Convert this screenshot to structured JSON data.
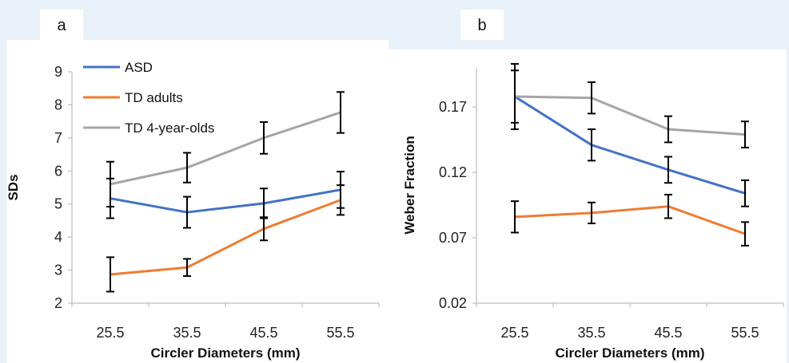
{
  "figure": {
    "background": "#e8f1fa",
    "panel_background": "#ffffff",
    "colors": {
      "ASD": "#4472c4",
      "TD adults": "#ed7d31",
      "TD 4-year-olds": "#a5a5a5",
      "error_bar": "#000000"
    }
  },
  "chart_data": [
    {
      "panel_label": "a",
      "type": "line",
      "xlabel": "Circler Diameters (mm)",
      "ylabel": "SDs",
      "categories": [
        "25.5",
        "35.5",
        "45.5",
        "55.5"
      ],
      "ylim": [
        2,
        9
      ],
      "yticks": [
        "2",
        "3",
        "4",
        "5",
        "6",
        "7",
        "8",
        "9"
      ],
      "yvalues": [
        2,
        3,
        4,
        5,
        6,
        7,
        8,
        9
      ],
      "legend": "top-left",
      "grid": false,
      "series": [
        {
          "name": "ASD",
          "values": [
            5.17,
            4.75,
            5.02,
            5.43
          ],
          "error": [
            0.6,
            0.47,
            0.45,
            0.55
          ]
        },
        {
          "name": "TD adults",
          "values": [
            2.87,
            3.08,
            4.25,
            5.12
          ],
          "error": [
            0.52,
            0.26,
            0.35,
            0.45
          ]
        },
        {
          "name": "TD 4-year-olds",
          "values": [
            5.6,
            6.1,
            7.0,
            7.77
          ],
          "error": [
            0.68,
            0.45,
            0.48,
            0.62
          ]
        }
      ]
    },
    {
      "panel_label": "b",
      "type": "line",
      "xlabel": "Circler Diameters (mm)",
      "ylabel": "Weber Fraction",
      "categories": [
        "25.5",
        "35.5",
        "45.5",
        "55.5"
      ],
      "ylim": [
        0.02,
        0.2
      ],
      "yticks": [
        "0.02",
        "0.07",
        "0.12",
        "0.17"
      ],
      "yvalues": [
        0.02,
        0.07,
        0.12,
        0.17
      ],
      "legend": "none",
      "grid": false,
      "series": [
        {
          "name": "ASD",
          "values": [
            0.178,
            0.141,
            0.122,
            0.104
          ],
          "error": [
            0.025,
            0.012,
            0.01,
            0.01
          ]
        },
        {
          "name": "TD adults",
          "values": [
            0.086,
            0.089,
            0.094,
            0.073
          ],
          "error": [
            0.012,
            0.008,
            0.009,
            0.009
          ]
        },
        {
          "name": "TD 4-year-olds",
          "values": [
            0.178,
            0.177,
            0.153,
            0.149
          ],
          "error": [
            0.02,
            0.012,
            0.01,
            0.01
          ]
        }
      ]
    }
  ]
}
